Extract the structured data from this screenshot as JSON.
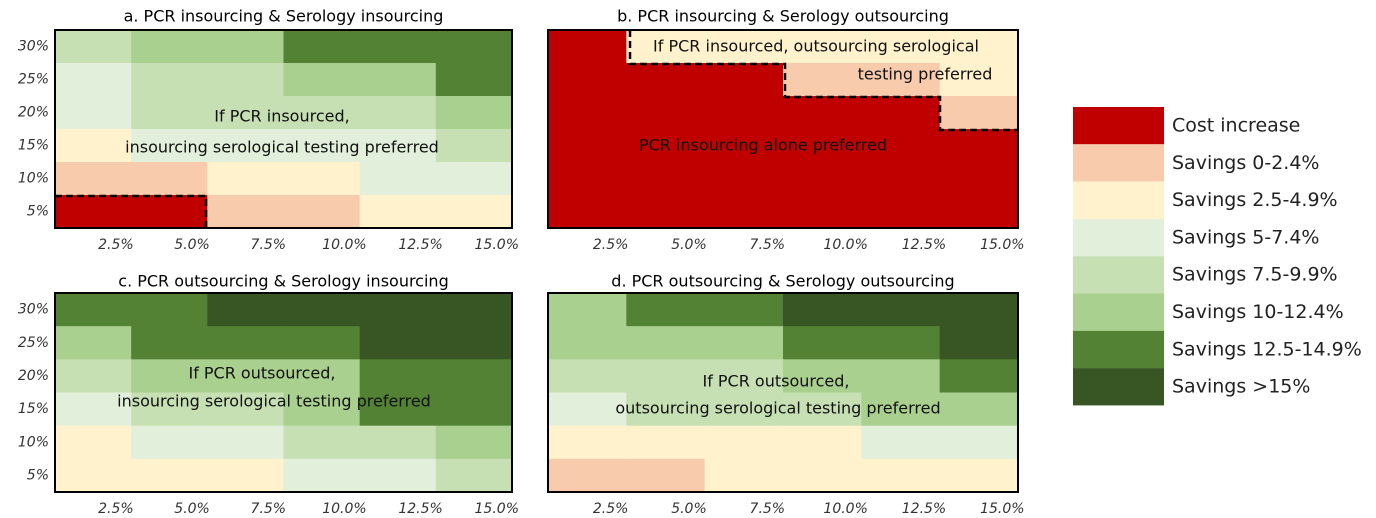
{
  "chart_data": [
    {
      "type": "heatmap",
      "title": "a. PCR insourcing & Serology insourcing",
      "x": [
        "2.5%",
        "5.0%",
        "7.5%",
        "10.0%",
        "12.5%",
        "15.0%"
      ],
      "y": [
        "30%",
        "25%",
        "20%",
        "15%",
        "10%",
        "5%"
      ],
      "values": [
        [
          4,
          5,
          5,
          6,
          6,
          6
        ],
        [
          3,
          4,
          4,
          5,
          5,
          6
        ],
        [
          3,
          4,
          4,
          4,
          4,
          5
        ],
        [
          2,
          3,
          3,
          3,
          3,
          4
        ],
        [
          1,
          1,
          2,
          2,
          3,
          3
        ],
        [
          0,
          0,
          1,
          1,
          2,
          2
        ]
      ],
      "annotations": [
        "If PCR insourced,",
        "insourcing serological  testing preferred"
      ]
    },
    {
      "type": "heatmap",
      "title": "b. PCR insourcing & Serology outsourcing",
      "x": [
        "2.5%",
        "5.0%",
        "7.5%",
        "10.0%",
        "12.5%",
        "15.0%"
      ],
      "values": [
        [
          0,
          2,
          2,
          2,
          2,
          2
        ],
        [
          0,
          0,
          0,
          1,
          1,
          2
        ],
        [
          0,
          0,
          0,
          0,
          0,
          1
        ],
        [
          0,
          0,
          0,
          0,
          0,
          0
        ],
        [
          0,
          0,
          0,
          0,
          0,
          0
        ],
        [
          0,
          0,
          0,
          0,
          0,
          0
        ]
      ],
      "annotations": [
        "If PCR insourced, outsourcing serological",
        "testing preferred",
        "PCR insourcing alone preferred"
      ]
    },
    {
      "type": "heatmap",
      "title": "c. PCR outsourcing & Serology insourcing",
      "x": [
        "2.5%",
        "5.0%",
        "7.5%",
        "10.0%",
        "12.5%",
        "15.0%"
      ],
      "y": [
        "30%",
        "25%",
        "20%",
        "15%",
        "10%",
        "5%"
      ],
      "values": [
        [
          6,
          6,
          7,
          7,
          7,
          7
        ],
        [
          5,
          6,
          6,
          6,
          7,
          7
        ],
        [
          4,
          5,
          5,
          5,
          6,
          6
        ],
        [
          3,
          4,
          4,
          5,
          6,
          6
        ],
        [
          2,
          3,
          3,
          4,
          4,
          5
        ],
        [
          2,
          2,
          2,
          3,
          3,
          4
        ]
      ],
      "annotations": [
        "If PCR outsourced,",
        "insourcing serological  testing preferred"
      ]
    },
    {
      "type": "heatmap",
      "title": "d. PCR outsourcing & Serology outsourcing",
      "x": [
        "2.5%",
        "5.0%",
        "7.5%",
        "10.0%",
        "12.5%",
        "15.0%"
      ],
      "values": [
        [
          5,
          6,
          6,
          7,
          7,
          7
        ],
        [
          5,
          5,
          5,
          6,
          6,
          7
        ],
        [
          4,
          4,
          4,
          5,
          5,
          6
        ],
        [
          3,
          4,
          4,
          4,
          5,
          5
        ],
        [
          2,
          2,
          2,
          2,
          3,
          3
        ],
        [
          1,
          1,
          2,
          2,
          2,
          2
        ]
      ],
      "annotations": [
        "If PCR outsourced,",
        "outsourcing serological testing preferred"
      ]
    }
  ],
  "legend": [
    {
      "label": "Cost increase",
      "color": "#c00000"
    },
    {
      "label": "Savings 0-2.4%",
      "color": "#f8cbad"
    },
    {
      "label": "Savings 2.5-4.9%",
      "color": "#fff2cc"
    },
    {
      "label": "Savings 5-7.4%",
      "color": "#e2efda"
    },
    {
      "label": "Savings 7.5-9.9%",
      "color": "#c6e0b4"
    },
    {
      "label": "Savings 10-12.4%",
      "color": "#a9d08e"
    },
    {
      "label": "Savings 12.5-14.9%",
      "color": "#548235"
    },
    {
      "label": "Savings >15%",
      "color": "#375623"
    }
  ]
}
